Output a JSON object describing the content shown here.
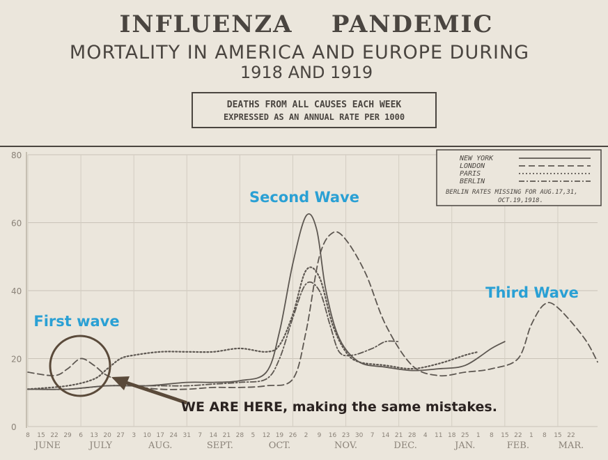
{
  "header": {
    "title": "INFLUENZA    PANDEMIC",
    "subtitle": "MORTALITY IN AMERICA AND EUROPE DURING",
    "years": "1918 AND 1919",
    "box_line1": "DEATHS FROM ALL CAUSES EACH WEEK",
    "box_line2": "EXPRESSED AS AN ANNUAL RATE PER 1000"
  },
  "annotations": {
    "second_wave": "Second Wave",
    "third_wave": "Third Wave",
    "first_wave": "First wave",
    "we_are_here": "WE ARE HERE, making the same mistakes."
  },
  "legend": {
    "note_line1": "BERLIN RATES MISSING FOR AUG.17,31,",
    "note_line2": "OCT.19,1918."
  },
  "colors": {
    "background": "#ebe6dc",
    "ink": "#4a4540",
    "grid": "#c9c3b8",
    "annotation_blue": "#2aa0d4",
    "circle": "#5a4a3a",
    "we_are_here": "#2a2220"
  },
  "chart_data": {
    "type": "line",
    "title": "INFLUENZA PANDEMIC — MORTALITY IN AMERICA AND EUROPE DURING 1918 AND 1919",
    "subtitle": "DEATHS FROM ALL CAUSES EACH WEEK EXPRESSED AS AN ANNUAL RATE PER 1000",
    "ylim": [
      0,
      80
    ],
    "yticks": [
      0,
      20,
      40,
      60,
      80
    ],
    "ytick_labels": [
      "0",
      "20",
      "40",
      "60",
      "80"
    ],
    "xlim": [
      0,
      43
    ],
    "xticks": [
      "8",
      "15",
      "22",
      "29",
      "6",
      "13",
      "20",
      "27",
      "3",
      "10",
      "17",
      "24",
      "31",
      "7",
      "14",
      "21",
      "28",
      "5",
      "12",
      "19",
      "26",
      "2",
      "9",
      "16",
      "23",
      "30",
      "7",
      "14",
      "21",
      "28",
      "4",
      "11",
      "18",
      "25",
      "1",
      "8",
      "15",
      "22",
      "1",
      "8",
      "15",
      "22"
    ],
    "months": [
      {
        "label": "JUNE",
        "x": 1.5
      },
      {
        "label": "JULY",
        "x": 5.5
      },
      {
        "label": "AUG.",
        "x": 10
      },
      {
        "label": "SEPT.",
        "x": 14.5
      },
      {
        "label": "OCT.",
        "x": 19
      },
      {
        "label": "NOV.",
        "x": 24
      },
      {
        "label": "DEC.",
        "x": 28.5
      },
      {
        "label": "JAN.",
        "x": 33
      },
      {
        "label": "FEB.",
        "x": 37
      },
      {
        "label": "MAR.",
        "x": 41
      }
    ],
    "series": [
      {
        "name": "NEW YORK",
        "style": "solid",
        "points": [
          [
            0,
            11
          ],
          [
            3,
            11
          ],
          [
            6,
            12
          ],
          [
            9,
            12
          ],
          [
            12,
            13
          ],
          [
            14,
            13
          ],
          [
            16,
            13.5
          ],
          [
            18,
            16
          ],
          [
            19,
            28
          ],
          [
            20,
            48
          ],
          [
            21,
            62
          ],
          [
            21.8,
            58
          ],
          [
            22.5,
            40
          ],
          [
            23.5,
            26
          ],
          [
            25,
            19
          ],
          [
            27,
            17.5
          ],
          [
            29,
            16.5
          ],
          [
            31,
            17
          ],
          [
            33,
            18
          ],
          [
            35,
            23
          ],
          [
            36,
            25
          ]
        ]
      },
      {
        "name": "LONDON",
        "style": "dashed",
        "points": [
          [
            0,
            16
          ],
          [
            2,
            15
          ],
          [
            3,
            17
          ],
          [
            4,
            20
          ],
          [
            5,
            18
          ],
          [
            6,
            15
          ],
          [
            8,
            12
          ],
          [
            10,
            11
          ],
          [
            12,
            11
          ],
          [
            14,
            11.5
          ],
          [
            16,
            11.5
          ],
          [
            18,
            12
          ],
          [
            20,
            14
          ],
          [
            21,
            28
          ],
          [
            22,
            50
          ],
          [
            23,
            57
          ],
          [
            24,
            55
          ],
          [
            25.5,
            45
          ],
          [
            27,
            30
          ],
          [
            29,
            18
          ],
          [
            31,
            15
          ],
          [
            33,
            16
          ],
          [
            35,
            17
          ],
          [
            37,
            20
          ],
          [
            38,
            30
          ],
          [
            39,
            36
          ],
          [
            40,
            35
          ],
          [
            42,
            26
          ],
          [
            43,
            19
          ]
        ]
      },
      {
        "name": "PARIS",
        "style": "dotted",
        "points": [
          [
            0,
            11
          ],
          [
            3,
            12
          ],
          [
            5,
            14
          ],
          [
            6,
            17
          ],
          [
            7,
            20
          ],
          [
            8,
            21
          ],
          [
            10,
            22
          ],
          [
            12,
            22
          ],
          [
            14,
            22
          ],
          [
            16,
            23
          ],
          [
            18,
            22
          ],
          [
            19,
            24
          ],
          [
            20,
            33
          ],
          [
            21,
            46
          ],
          [
            22,
            44
          ],
          [
            23,
            30
          ],
          [
            24,
            22
          ],
          [
            25,
            19
          ],
          [
            27,
            18
          ],
          [
            29,
            17
          ],
          [
            31,
            18.5
          ],
          [
            33,
            21
          ],
          [
            34,
            22
          ]
        ]
      },
      {
        "name": "BERLIN",
        "style": "dashdot",
        "points": [
          [
            0,
            11
          ],
          [
            3,
            11
          ],
          [
            6,
            12
          ],
          [
            8,
            12
          ],
          [
            10,
            12
          ],
          [
            12,
            12
          ],
          [
            14,
            12.5
          ],
          [
            16,
            13
          ],
          [
            18,
            14
          ],
          [
            19,
            20
          ],
          [
            20,
            32
          ],
          [
            21,
            42
          ],
          [
            22,
            40
          ],
          [
            22.8,
            30
          ],
          [
            23.5,
            22
          ],
          [
            24.5,
            21
          ],
          [
            26,
            23
          ],
          [
            27,
            25
          ],
          [
            28,
            25
          ]
        ]
      }
    ],
    "legend": [
      "NEW YORK",
      "LONDON",
      "PARIS",
      "BERLIN"
    ],
    "annotations": [
      {
        "text_key": "second_wave",
        "x": 21
      },
      {
        "text_key": "third_wave",
        "x": 39
      },
      {
        "text_key": "first_wave",
        "x": 4
      }
    ]
  }
}
